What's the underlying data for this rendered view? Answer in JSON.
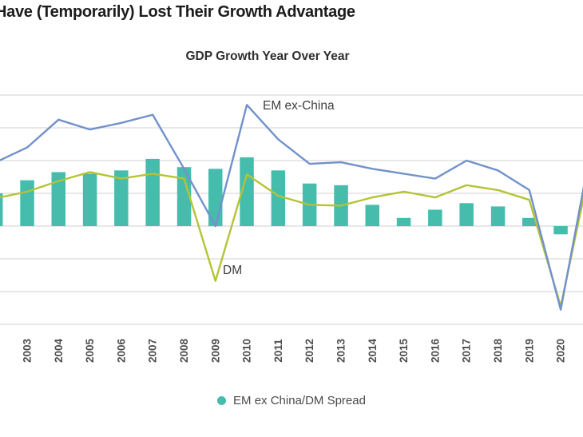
{
  "header": {
    "title": "Have (Temporarily) Lost Their Growth Advantage",
    "title_note": "left edge of title cropped out of frame"
  },
  "chart_data": {
    "type": "bar+line combo",
    "title": "GDP Growth Year Over Year",
    "x_tick_labels": [
      "2003",
      "2004",
      "2005",
      "2006",
      "2007",
      "2008",
      "2009",
      "2010",
      "2011",
      "2012",
      "2013",
      "2014",
      "2015",
      "2016",
      "2017",
      "2018",
      "2019",
      "2020"
    ],
    "x_tick_rotation_deg": -90,
    "y_axis_labels_visible": false,
    "zero_baseline_units": 0,
    "gridline_values": [
      8,
      6,
      4,
      2,
      0,
      -2,
      -4,
      -6
    ],
    "grid_color": "#d9d9d9",
    "series": [
      {
        "name": "EM ex China/DM Spread",
        "type": "bar",
        "color": "#45bcac",
        "points": [
          [
            2002,
            2.0
          ],
          [
            2003,
            2.8
          ],
          [
            2004,
            3.3
          ],
          [
            2005,
            3.2
          ],
          [
            2006,
            3.4
          ],
          [
            2007,
            4.1
          ],
          [
            2008,
            3.6
          ],
          [
            2009,
            3.5
          ],
          [
            2010,
            4.2
          ],
          [
            2011,
            3.4
          ],
          [
            2012,
            2.6
          ],
          [
            2013,
            2.5
          ],
          [
            2014,
            1.3
          ],
          [
            2015,
            0.5
          ],
          [
            2016,
            1.0
          ],
          [
            2017,
            1.4
          ],
          [
            2018,
            1.2
          ],
          [
            2019,
            0.5
          ],
          [
            2020,
            -0.5
          ]
        ]
      },
      {
        "name": "EM ex-China",
        "type": "line",
        "color": "#7191cb",
        "points": [
          [
            2002,
            3.9
          ],
          [
            2003,
            4.8
          ],
          [
            2004,
            6.5
          ],
          [
            2005,
            5.9
          ],
          [
            2006,
            6.3
          ],
          [
            2007,
            6.8
          ],
          [
            2008,
            3.5
          ],
          [
            2009,
            0.0
          ],
          [
            2010,
            7.4
          ],
          [
            2011,
            5.3
          ],
          [
            2012,
            3.8
          ],
          [
            2013,
            3.9
          ],
          [
            2014,
            3.5
          ],
          [
            2015,
            3.2
          ],
          [
            2016,
            2.9
          ],
          [
            2017,
            4.0
          ],
          [
            2018,
            3.4
          ],
          [
            2019,
            2.2
          ],
          [
            2020,
            -5.1
          ],
          [
            2021,
            5.1
          ]
        ]
      },
      {
        "name": "DM",
        "type": "line",
        "color": "#b5c335",
        "points": [
          [
            2002,
            1.7
          ],
          [
            2003,
            2.1
          ],
          [
            2004,
            2.75
          ],
          [
            2005,
            3.3
          ],
          [
            2006,
            2.9
          ],
          [
            2007,
            3.2
          ],
          [
            2008,
            2.9
          ],
          [
            2009,
            -3.35
          ],
          [
            2010,
            3.15
          ],
          [
            2011,
            1.85
          ],
          [
            2012,
            1.3
          ],
          [
            2013,
            1.25
          ],
          [
            2014,
            1.75
          ],
          [
            2015,
            2.1
          ],
          [
            2016,
            1.75
          ],
          [
            2017,
            2.5
          ],
          [
            2018,
            2.2
          ],
          [
            2019,
            1.6
          ],
          [
            2020,
            -4.9
          ],
          [
            2021,
            4.2
          ]
        ]
      }
    ],
    "annotations": [
      {
        "text": "EM ex-China"
      },
      {
        "text": "DM"
      }
    ],
    "tick_label_color": "#4d4d4d"
  },
  "legend": {
    "items": [
      {
        "label": "EM ex China/DM Spread",
        "color": "#45bcac"
      }
    ]
  }
}
